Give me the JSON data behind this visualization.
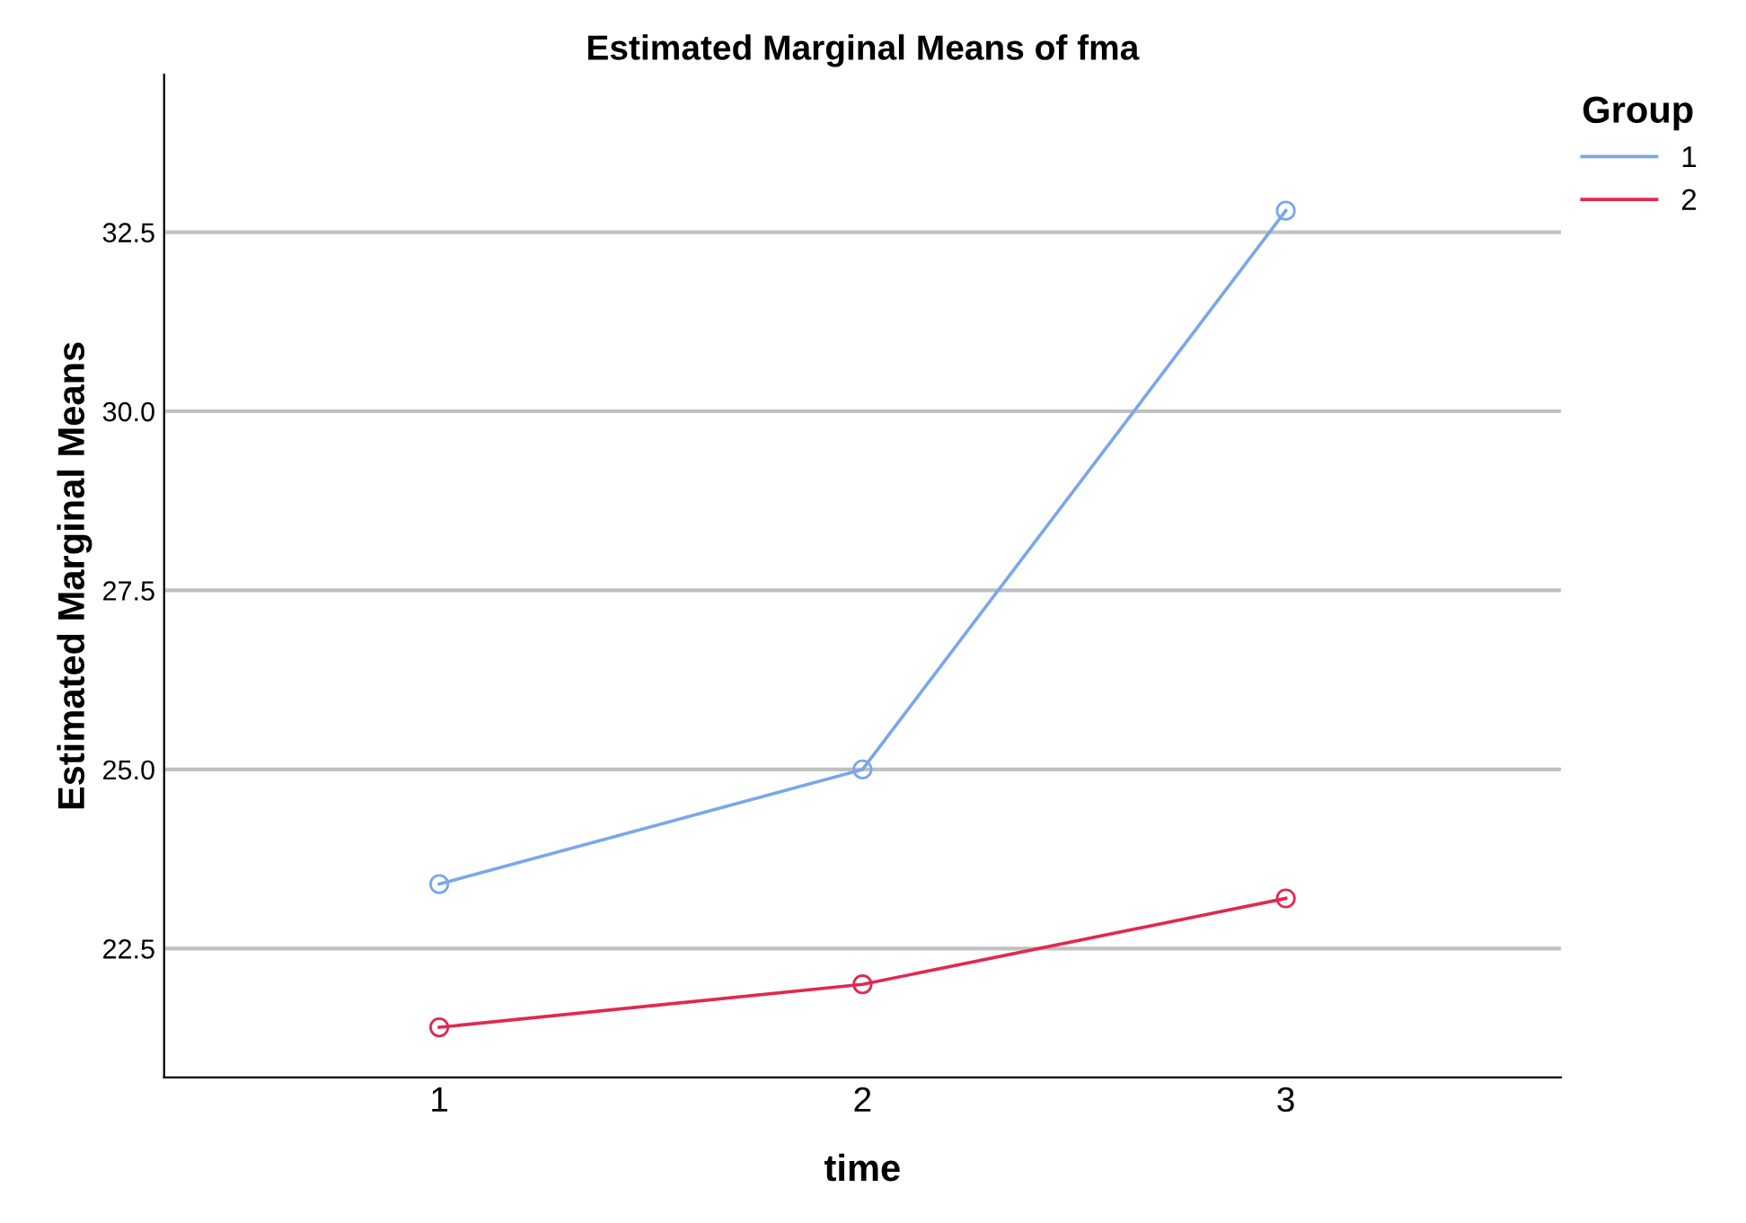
{
  "chart_data": {
    "type": "line",
    "title": "Estimated Marginal Means of fma",
    "xlabel": "time",
    "ylabel": "Estimated Marginal Means",
    "legend_title": "Group",
    "categories": [
      "1",
      "2",
      "3"
    ],
    "series": [
      {
        "name": "1",
        "color": "#7aa7ea",
        "values": [
          23.4,
          25.0,
          32.8
        ]
      },
      {
        "name": "2",
        "color": "#e0294f",
        "values": [
          21.4,
          22.0,
          23.2
        ]
      }
    ],
    "ylim": [
      20.7,
      34.7
    ],
    "yticks": [
      22.5,
      {
        "value": 25,
        "label": "25.0"
      },
      27.5,
      {
        "value": 30,
        "label": "30.0"
      },
      32.5
    ],
    "grid": "y",
    "legend": "top right",
    "marker": "circle",
    "line_style": "solid"
  }
}
